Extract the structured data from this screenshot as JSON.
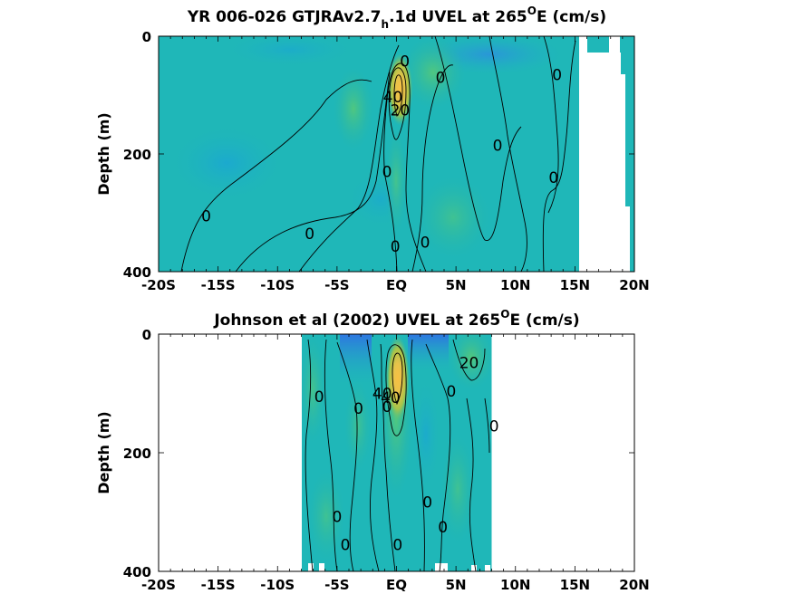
{
  "chart_data": [
    {
      "type": "heatmap",
      "title_main": "YR 006-026 GTJRAv2.7",
      "title_sub": "h",
      "title_rest": ".1d UVEL at 265",
      "title_sup": "O",
      "title_end": "E (cm/s)",
      "xlabel": "",
      "ylabel": "Depth (m)",
      "xlim": [
        -20,
        20
      ],
      "ylim": [
        0,
        400
      ],
      "y_reversed": true,
      "x_ticks": [
        -20,
        -15,
        -10,
        -5,
        0,
        5,
        10,
        15,
        20
      ],
      "x_tick_labels": [
        "-20S",
        "-15S",
        "-10S",
        "-5S",
        "EQ",
        "5N",
        "10N",
        "15N",
        "20N"
      ],
      "y_ticks": [
        0,
        200,
        400
      ],
      "y_tick_labels": [
        "0",
        "200",
        "400"
      ],
      "data_extent_x": [
        -20,
        20
      ],
      "colormap": "parula",
      "jet": {
        "lat": 0.3,
        "depth": 90,
        "max_speed": 60
      },
      "contour_labels": [
        {
          "text": "0",
          "lat": 0.7,
          "depth": 42
        },
        {
          "text": "0",
          "lat": 3.7,
          "depth": 70
        },
        {
          "text": "0",
          "lat": 13.5,
          "depth": 65
        },
        {
          "text": "40",
          "lat": -0.3,
          "depth": 103
        },
        {
          "text": "20",
          "lat": 0.3,
          "depth": 125
        },
        {
          "text": "0",
          "lat": 8.5,
          "depth": 185
        },
        {
          "text": "0",
          "lat": -0.8,
          "depth": 230
        },
        {
          "text": "0",
          "lat": 13.2,
          "depth": 240
        },
        {
          "text": "0",
          "lat": -16,
          "depth": 305
        },
        {
          "text": "0",
          "lat": -7.3,
          "depth": 335
        },
        {
          "text": "0",
          "lat": 2.4,
          "depth": 350
        },
        {
          "text": "0",
          "lat": -0.1,
          "depth": 357
        }
      ]
    },
    {
      "type": "heatmap",
      "title_main": "Johnson et al (2002) UVEL at 265",
      "title_sup": "O",
      "title_end": "E (cm/s)",
      "xlabel": "",
      "ylabel": "Depth (m)",
      "xlim": [
        -20,
        20
      ],
      "ylim": [
        0,
        400
      ],
      "y_reversed": true,
      "x_ticks": [
        -20,
        -15,
        -10,
        -5,
        0,
        5,
        10,
        15,
        20
      ],
      "x_tick_labels": [
        "-20S",
        "-15S",
        "-10S",
        "-5S",
        "EQ",
        "5N",
        "10N",
        "15N",
        "20N"
      ],
      "y_ticks": [
        0,
        200,
        400
      ],
      "y_tick_labels": [
        "0",
        "200",
        "400"
      ],
      "data_extent_x": [
        -8,
        8
      ],
      "colormap": "parula",
      "jet": {
        "lat": 0.1,
        "depth": 75,
        "max_speed": 60
      },
      "contour_labels": [
        {
          "text": "20",
          "lat": 6.1,
          "depth": 48
        },
        {
          "text": "0",
          "lat": -6.5,
          "depth": 105
        },
        {
          "text": "0",
          "lat": 4.6,
          "depth": 96
        },
        {
          "text": "40",
          "lat": -1.2,
          "depth": 100
        },
        {
          "text": "40",
          "lat": -0.5,
          "depth": 107
        },
        {
          "text": "0",
          "lat": -3.2,
          "depth": 125
        },
        {
          "text": "0",
          "lat": -0.8,
          "depth": 122
        },
        {
          "text": "0",
          "lat": 8.2,
          "depth": 155
        },
        {
          "text": "0",
          "lat": 2.6,
          "depth": 283
        },
        {
          "text": "0",
          "lat": -5,
          "depth": 308
        },
        {
          "text": "0",
          "lat": 3.9,
          "depth": 325
        },
        {
          "text": "0",
          "lat": -4.3,
          "depth": 355
        },
        {
          "text": "0",
          "lat": 0.1,
          "depth": 355
        }
      ]
    }
  ]
}
